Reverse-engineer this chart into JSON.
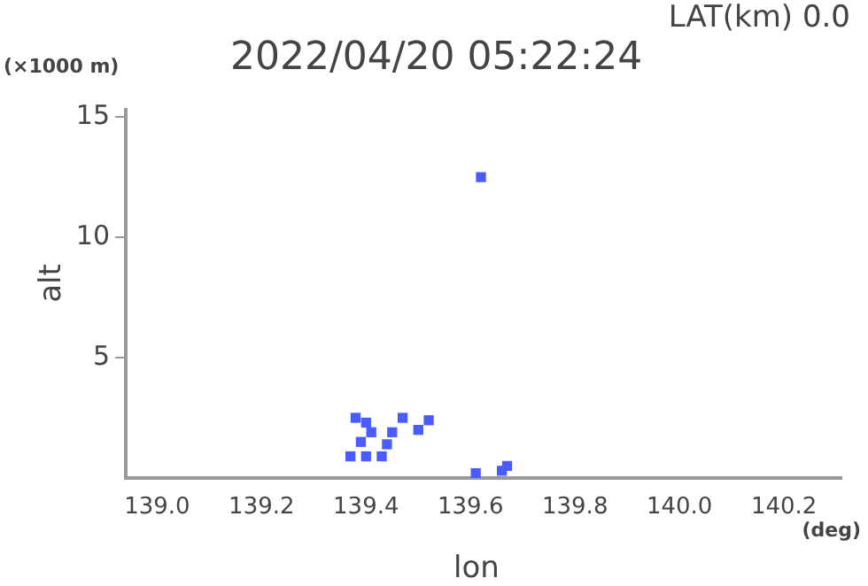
{
  "chart_data": {
    "type": "scatter",
    "title": "2022/04/20 05:22:24",
    "subtitle": "LAT(km) 0.0",
    "xlabel": "lon",
    "ylabel": "alt",
    "annotations": [
      "(×1000 m)",
      "(deg)"
    ],
    "xlim": [
      138.94,
      140.31
    ],
    "ylim": [
      0,
      15.3
    ],
    "xticks": [
      {
        "value": 139,
        "label": "139.0"
      },
      {
        "value": 139.2,
        "label": "139.2"
      },
      {
        "value": 139.4,
        "label": "139.4"
      },
      {
        "value": 139.6,
        "label": "139.6"
      },
      {
        "value": 139.8,
        "label": "139.8"
      },
      {
        "value": 140,
        "label": "140.0"
      },
      {
        "value": 140.2,
        "label": "140.2"
      }
    ],
    "yticks": [
      5,
      10,
      15
    ],
    "grid": false,
    "legend": false,
    "marker": "square",
    "series": [
      {
        "color": "#4a5cff",
        "x": [
          139.38,
          139.4,
          139.39,
          139.4,
          139.41,
          139.37,
          139.43,
          139.44,
          139.45,
          139.47,
          139.5,
          139.52,
          139.62,
          139.61,
          139.66,
          139.67
        ],
        "values": [
          2.5,
          2.3,
          1.5,
          0.9,
          1.9,
          0.9,
          0.9,
          1.4,
          1.9,
          2.5,
          2.0,
          2.4,
          12.5,
          0.2,
          0.3,
          0.5
        ]
      }
    ]
  }
}
